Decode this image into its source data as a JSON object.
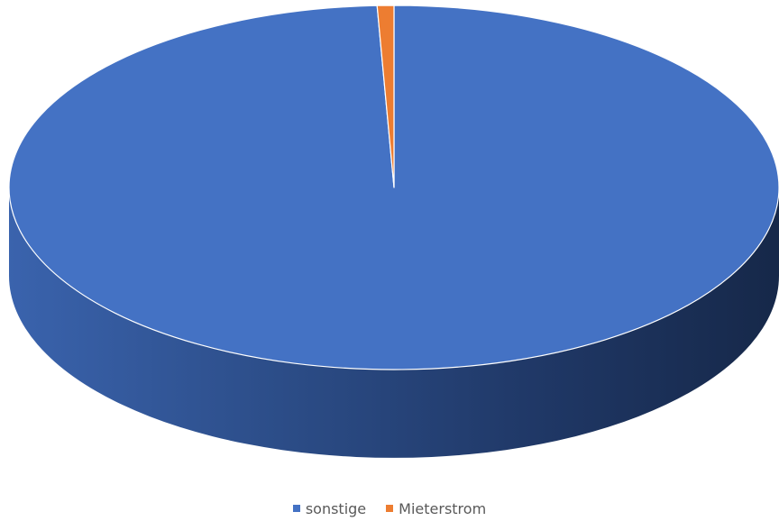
{
  "chart_data": {
    "type": "pie",
    "style": "3d",
    "categories": [
      "sonstige",
      "Mieterstrom"
    ],
    "values": [
      99.3,
      0.7
    ],
    "colors": [
      "#4472c4",
      "#ed7d31"
    ],
    "side_colors": [
      "#2f528f",
      "#ae5a21"
    ],
    "title": "",
    "legend_position": "bottom",
    "data_labels": false
  }
}
